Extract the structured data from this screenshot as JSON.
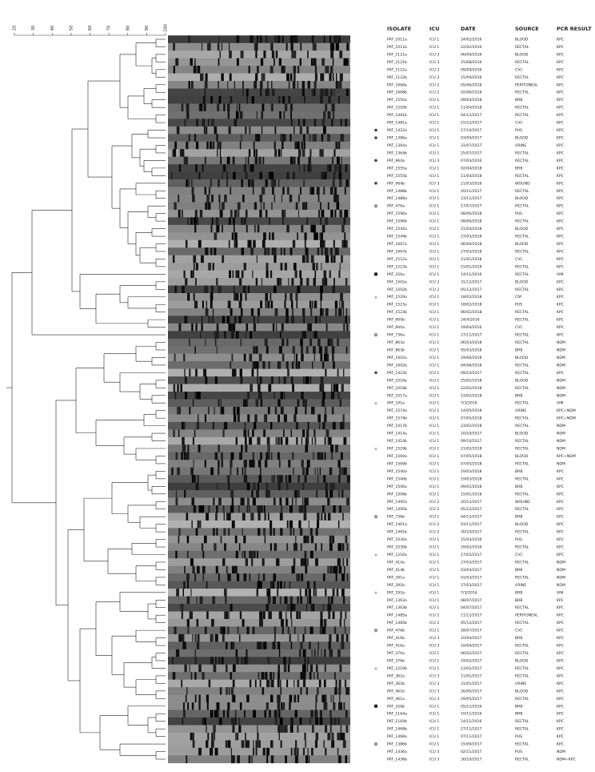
{
  "scale": {
    "ticks": [
      "20",
      "30",
      "40",
      "50",
      "60",
      "70",
      "80",
      "90",
      "100"
    ]
  },
  "table": {
    "headers": [
      "ISOLATE",
      "ICU",
      "DATE",
      "SOURCE",
      "PCR RESULT"
    ],
    "rows": [
      [
        "PAT_1011a",
        "ICU 1",
        "24/02/2016",
        "BLOOD",
        "KPC"
      ],
      [
        "PAT_1011b",
        "ICU 1",
        "22/02/2016",
        "RECTAL",
        "KPC"
      ],
      [
        "PAT_1121a",
        "ICU 3",
        "06/09/2016",
        "BLOOD",
        "KPC"
      ],
      [
        "PAT_1121b",
        "ICU 3",
        "25/08/2016",
        "RECTAL",
        "KPC"
      ],
      [
        "PAT_1122a",
        "ICU 3",
        "09/09/2016",
        "CVC",
        "KPC"
      ],
      [
        "PAT_1122b",
        "ICU 3",
        "15/09/2016",
        "RECTAL",
        "KPC"
      ],
      [
        "PAT_1668a",
        "ICU 2",
        "05/06/2018",
        "PERITONEAL",
        "KPC"
      ],
      [
        "PAT_1668b",
        "ICU 2",
        "02/06/2018",
        "RECTAL",
        "KPC"
      ],
      [
        "PAT_1550a",
        "ICU 1",
        "09/04/2018",
        "BRB",
        "KPC"
      ],
      [
        "PAT_1550b",
        "ICU 1",
        "11/04/2018",
        "RECTAL",
        "KPC"
      ],
      [
        "PAT_1481b",
        "ICU 1",
        "04/12/2017",
        "RECTAL",
        "KPC"
      ],
      [
        "PAT_1481a",
        "ICU 1",
        "15/12/2017",
        "CVC",
        "KPC"
      ],
      [
        "PAT_1422a",
        "ICU 1",
        "17/10/2017",
        "PUS",
        "KPC"
      ],
      [
        "PAT_1386a",
        "ICU 1",
        "03/09/2017",
        "BLOOD",
        "KPC"
      ],
      [
        "PAT_1364a",
        "ICU 1",
        "31/07/2017",
        "URINE",
        "KPC"
      ],
      [
        "PAT_1364b",
        "ICU 1",
        "25/07/2017",
        "RECTAL",
        "KPC"
      ],
      [
        "PAT_964a",
        "ICU 3",
        "07/03/2016",
        "RECTAL",
        "KPC"
      ],
      [
        "PAT_1555a",
        "ICU 1",
        "02/04/2018",
        "BRB",
        "KPC"
      ],
      [
        "PAT_1555b",
        "ICU 1",
        "11/04/2018",
        "RECTAL",
        "KPC"
      ],
      [
        "PAT_964b",
        "ICU 3",
        "21/03/2016",
        "WOUND",
        "KPC"
      ],
      [
        "PAT_1488b",
        "ICU 1",
        "20/11/2017",
        "RECTAL",
        "KPC"
      ],
      [
        "PAT_1488a",
        "ICU 1",
        "23/11/2017",
        "BLOOD",
        "KPC"
      ],
      [
        "PAT_476a",
        "ICU 1",
        "17/07/2017",
        "RECTAL",
        "KPC"
      ],
      [
        "PAT_1596a",
        "ICU 1",
        "08/06/2018",
        "PUS",
        "KPC"
      ],
      [
        "PAT_1596b",
        "ICU 1",
        "08/06/2018",
        "RECTAL",
        "KPC"
      ],
      [
        "PAT_1544a",
        "ICU 1",
        "21/04/2018",
        "BLOOD",
        "KPC"
      ],
      [
        "PAT_1544b",
        "ICU 1",
        "27/03/2018",
        "RECTAL",
        "KPC"
      ],
      [
        "PAT_1667a",
        "ICU 1",
        "06/06/2018",
        "BLOOD",
        "KPC"
      ],
      [
        "PAT_1667b",
        "ICU 1",
        "27/03/2018",
        "RECTAL",
        "KPC"
      ],
      [
        "PAT_1512a",
        "ICU 1",
        "21/01/2018",
        "CVC",
        "KPC"
      ],
      [
        "PAT_1512b",
        "ICU 1",
        "15/01/2018",
        "RECTAL",
        "KPC"
      ],
      [
        "PAT_326a",
        "ICU 1",
        "14/11/2016",
        "RECTAL",
        "VIM"
      ],
      [
        "PAT_1502a",
        "ICU 2",
        "31/12/2017",
        "BLOOD",
        "KPC"
      ],
      [
        "PAT_1502b",
        "ICU 2",
        "05/12/2017",
        "RECTAL",
        "KPC"
      ],
      [
        "PAT_1529a",
        "ICU 1",
        "18/02/2018",
        "CSF",
        "KPC"
      ],
      [
        "PAT_1523a",
        "ICU 1",
        "18/02/2018",
        "PUS",
        "KPC"
      ],
      [
        "PAT_1523b",
        "ICU 1",
        "06/02/2018",
        "RECTAL",
        "KPC"
      ],
      [
        "PAT_900b",
        "ICU 1",
        "24/4/2016",
        "RECTAL",
        "KPC"
      ],
      [
        "PAT_900a",
        "ICU 1",
        "19/04/2016",
        "CVC",
        "KPC"
      ],
      [
        "PAT_736a",
        "ICU 1",
        "27/11/2017",
        "RECTAL",
        "KPC"
      ],
      [
        "PAT_863a",
        "ICU 1",
        "06/03/2018",
        "RECTAL",
        "NDM"
      ],
      [
        "PAT_863b",
        "ICU 1",
        "05/03/2018",
        "BRB",
        "NDM"
      ],
      [
        "PAT_1602a",
        "ICU 1",
        "19/06/2018",
        "BLOOD",
        "NDM"
      ],
      [
        "PAT_1602b",
        "ICU 1",
        "04/06/2018",
        "RECTAL",
        "NDM"
      ],
      [
        "PAT_1422b",
        "ICU 1",
        "09/10/2017",
        "RECTAL",
        "KPC"
      ],
      [
        "PAT_1018a",
        "ICU 1",
        "25/02/2018",
        "BLOOD",
        "NDM"
      ],
      [
        "PAT_1018b",
        "ICU 1",
        "22/02/2018",
        "RECTAL",
        "NDM"
      ],
      [
        "PAT_1017a",
        "ICU 1",
        "23/02/2018",
        "BRB",
        "NDM"
      ],
      [
        "PAT_191a",
        "ICU 1",
        "7/3/2016",
        "RECTAL",
        "VIM"
      ],
      [
        "PAT_1574a",
        "ICU 1",
        "14/05/2018",
        "URINE",
        "KPC+NDM"
      ],
      [
        "PAT_1574b",
        "ICU 1",
        "07/05/2018",
        "RECTAL",
        "KPC+NDM"
      ],
      [
        "PAT_1017b",
        "ICU 1",
        "23/02/2018",
        "RECTAL",
        "NDM"
      ],
      [
        "PAT_1414a",
        "ICU 1",
        "10/10/2017",
        "BLOOD",
        "NDM"
      ],
      [
        "PAT_1414b",
        "ICU 1",
        "09/10/2017",
        "RECTAL",
        "NDM"
      ],
      [
        "PAT_1529b",
        "ICU 1",
        "21/02/2018",
        "RECTAL",
        "NDM"
      ],
      [
        "PAT_1569a",
        "ICU 1",
        "07/05/2018",
        "BLOOD",
        "KPC+NDM"
      ],
      [
        "PAT_1569b",
        "ICU 1",
        "07/05/2018",
        "RECTAL",
        "NDM"
      ],
      [
        "PAT_1540a",
        "ICU 1",
        "19/03/2018",
        "BRB",
        "KPC"
      ],
      [
        "PAT_1540b",
        "ICU 1",
        "19/03/2018",
        "RECTAL",
        "KPC"
      ],
      [
        "PAT_1506a",
        "ICU 1",
        "09/01/2018",
        "BRB",
        "KPC"
      ],
      [
        "PAT_1506b",
        "ICU 1",
        "15/01/2018",
        "RECTAL",
        "KPC"
      ],
      [
        "PAT_1495a",
        "ICU 2",
        "20/12/2017",
        "WOUND",
        "KPC"
      ],
      [
        "PAT_1495b",
        "ICU 2",
        "05/12/2017",
        "RECTAL",
        "KPC"
      ],
      [
        "PAT_736b",
        "ICU 1",
        "04/12/2017",
        "BRB",
        "KPC"
      ],
      [
        "PAT_1461a",
        "ICU 2",
        "03/11/2017",
        "BLOOD",
        "KPC"
      ],
      [
        "PAT_1461b",
        "ICU 2",
        "30/10/2017",
        "RECTAL",
        "KPC"
      ],
      [
        "PAT_1030a",
        "ICU 1",
        "15/03/2016",
        "PUS",
        "KPC"
      ],
      [
        "PAT_1030b",
        "ICU 1",
        "29/02/2016",
        "RECTAL",
        "KPC"
      ],
      [
        "PAT_1216a",
        "ICU 1",
        "17/02/2017",
        "CVC",
        "KPC"
      ],
      [
        "PAT_414a",
        "ICU 1",
        "27/03/2017",
        "RECTAL",
        "NDM"
      ],
      [
        "PAT_414b",
        "ICU 1",
        "03/04/2017",
        "BRB",
        "NDM"
      ],
      [
        "PAT_391a",
        "ICU 1",
        "01/03/2017",
        "RECTAL",
        "NDM"
      ],
      [
        "PAT_391b",
        "ICU 1",
        "27/03/2017",
        "URINE",
        "NDM"
      ],
      [
        "PAT_191b",
        "ICU 1",
        "7/3/2016",
        "BRB",
        "VIM"
      ],
      [
        "PAT_1363a",
        "ICU 1",
        "08/07/2017",
        "BRB",
        "KPC"
      ],
      [
        "PAT_1363b",
        "ICU 1",
        "04/07/2017",
        "RECTAL",
        "KPC"
      ],
      [
        "PAT_1485a",
        "ICU 2",
        "11/12/2017",
        "PERITONEAL",
        "KPC"
      ],
      [
        "PAT_1485b",
        "ICU 2",
        "05/12/2017",
        "RECTAL",
        "KPC"
      ],
      [
        "PAT_476b",
        "ICU 1",
        "28/07/2017",
        "CVC",
        "KPC"
      ],
      [
        "PAT_416b",
        "ICU 3",
        "10/04/2017",
        "BRB",
        "KPC"
      ],
      [
        "PAT_416a",
        "ICU 3",
        "10/04/2017",
        "RECTAL",
        "KPC"
      ],
      [
        "PAT_376a",
        "ICU 1",
        "06/02/2017",
        "RECTAL",
        "KPC"
      ],
      [
        "PAT_376b",
        "ICU 1",
        "19/02/2017",
        "BLOOD",
        "KPC"
      ],
      [
        "PAT_1216b",
        "ICU 1",
        "13/02/2017",
        "RECTAL",
        "KPC"
      ],
      [
        "PAT_362a",
        "ICU 3",
        "11/01/2017",
        "RECTAL",
        "KPC"
      ],
      [
        "PAT_362b",
        "ICU 3",
        "31/01/2017",
        "URINE",
        "KPC"
      ],
      [
        "PAT_461b",
        "ICU 3",
        "26/05/2017",
        "BLOOD",
        "KPC"
      ],
      [
        "PAT_461a",
        "ICU 3",
        "29/05/2017",
        "RECTAL",
        "KPC"
      ],
      [
        "PAT_326b",
        "ICU 1",
        "05/12/2016",
        "BRB",
        "KPC"
      ],
      [
        "PAT_1164a",
        "ICU 1",
        "10/11/2016",
        "BRB",
        "KPC"
      ],
      [
        "PAT_1164b",
        "ICU 1",
        "14/11/2016",
        "RECTAL",
        "KPC"
      ],
      [
        "PAT_1468b",
        "ICU 1",
        "27/11/2017",
        "RECTAL",
        "KPC"
      ],
      [
        "PAT_1468a",
        "ICU 1",
        "07/11/2017",
        "PUS",
        "KPC"
      ],
      [
        "PAT_1386b",
        "ICU 1",
        "15/09/2017",
        "RECTAL",
        "KPC"
      ],
      [
        "PAT_1436a",
        "ICU 3",
        "02/11/2017",
        "PUS",
        "NDM"
      ],
      [
        "PAT_1436b",
        "ICU 3",
        "30/10/2017",
        "RECTAL",
        "NDM+KPC"
      ]
    ]
  }
}
